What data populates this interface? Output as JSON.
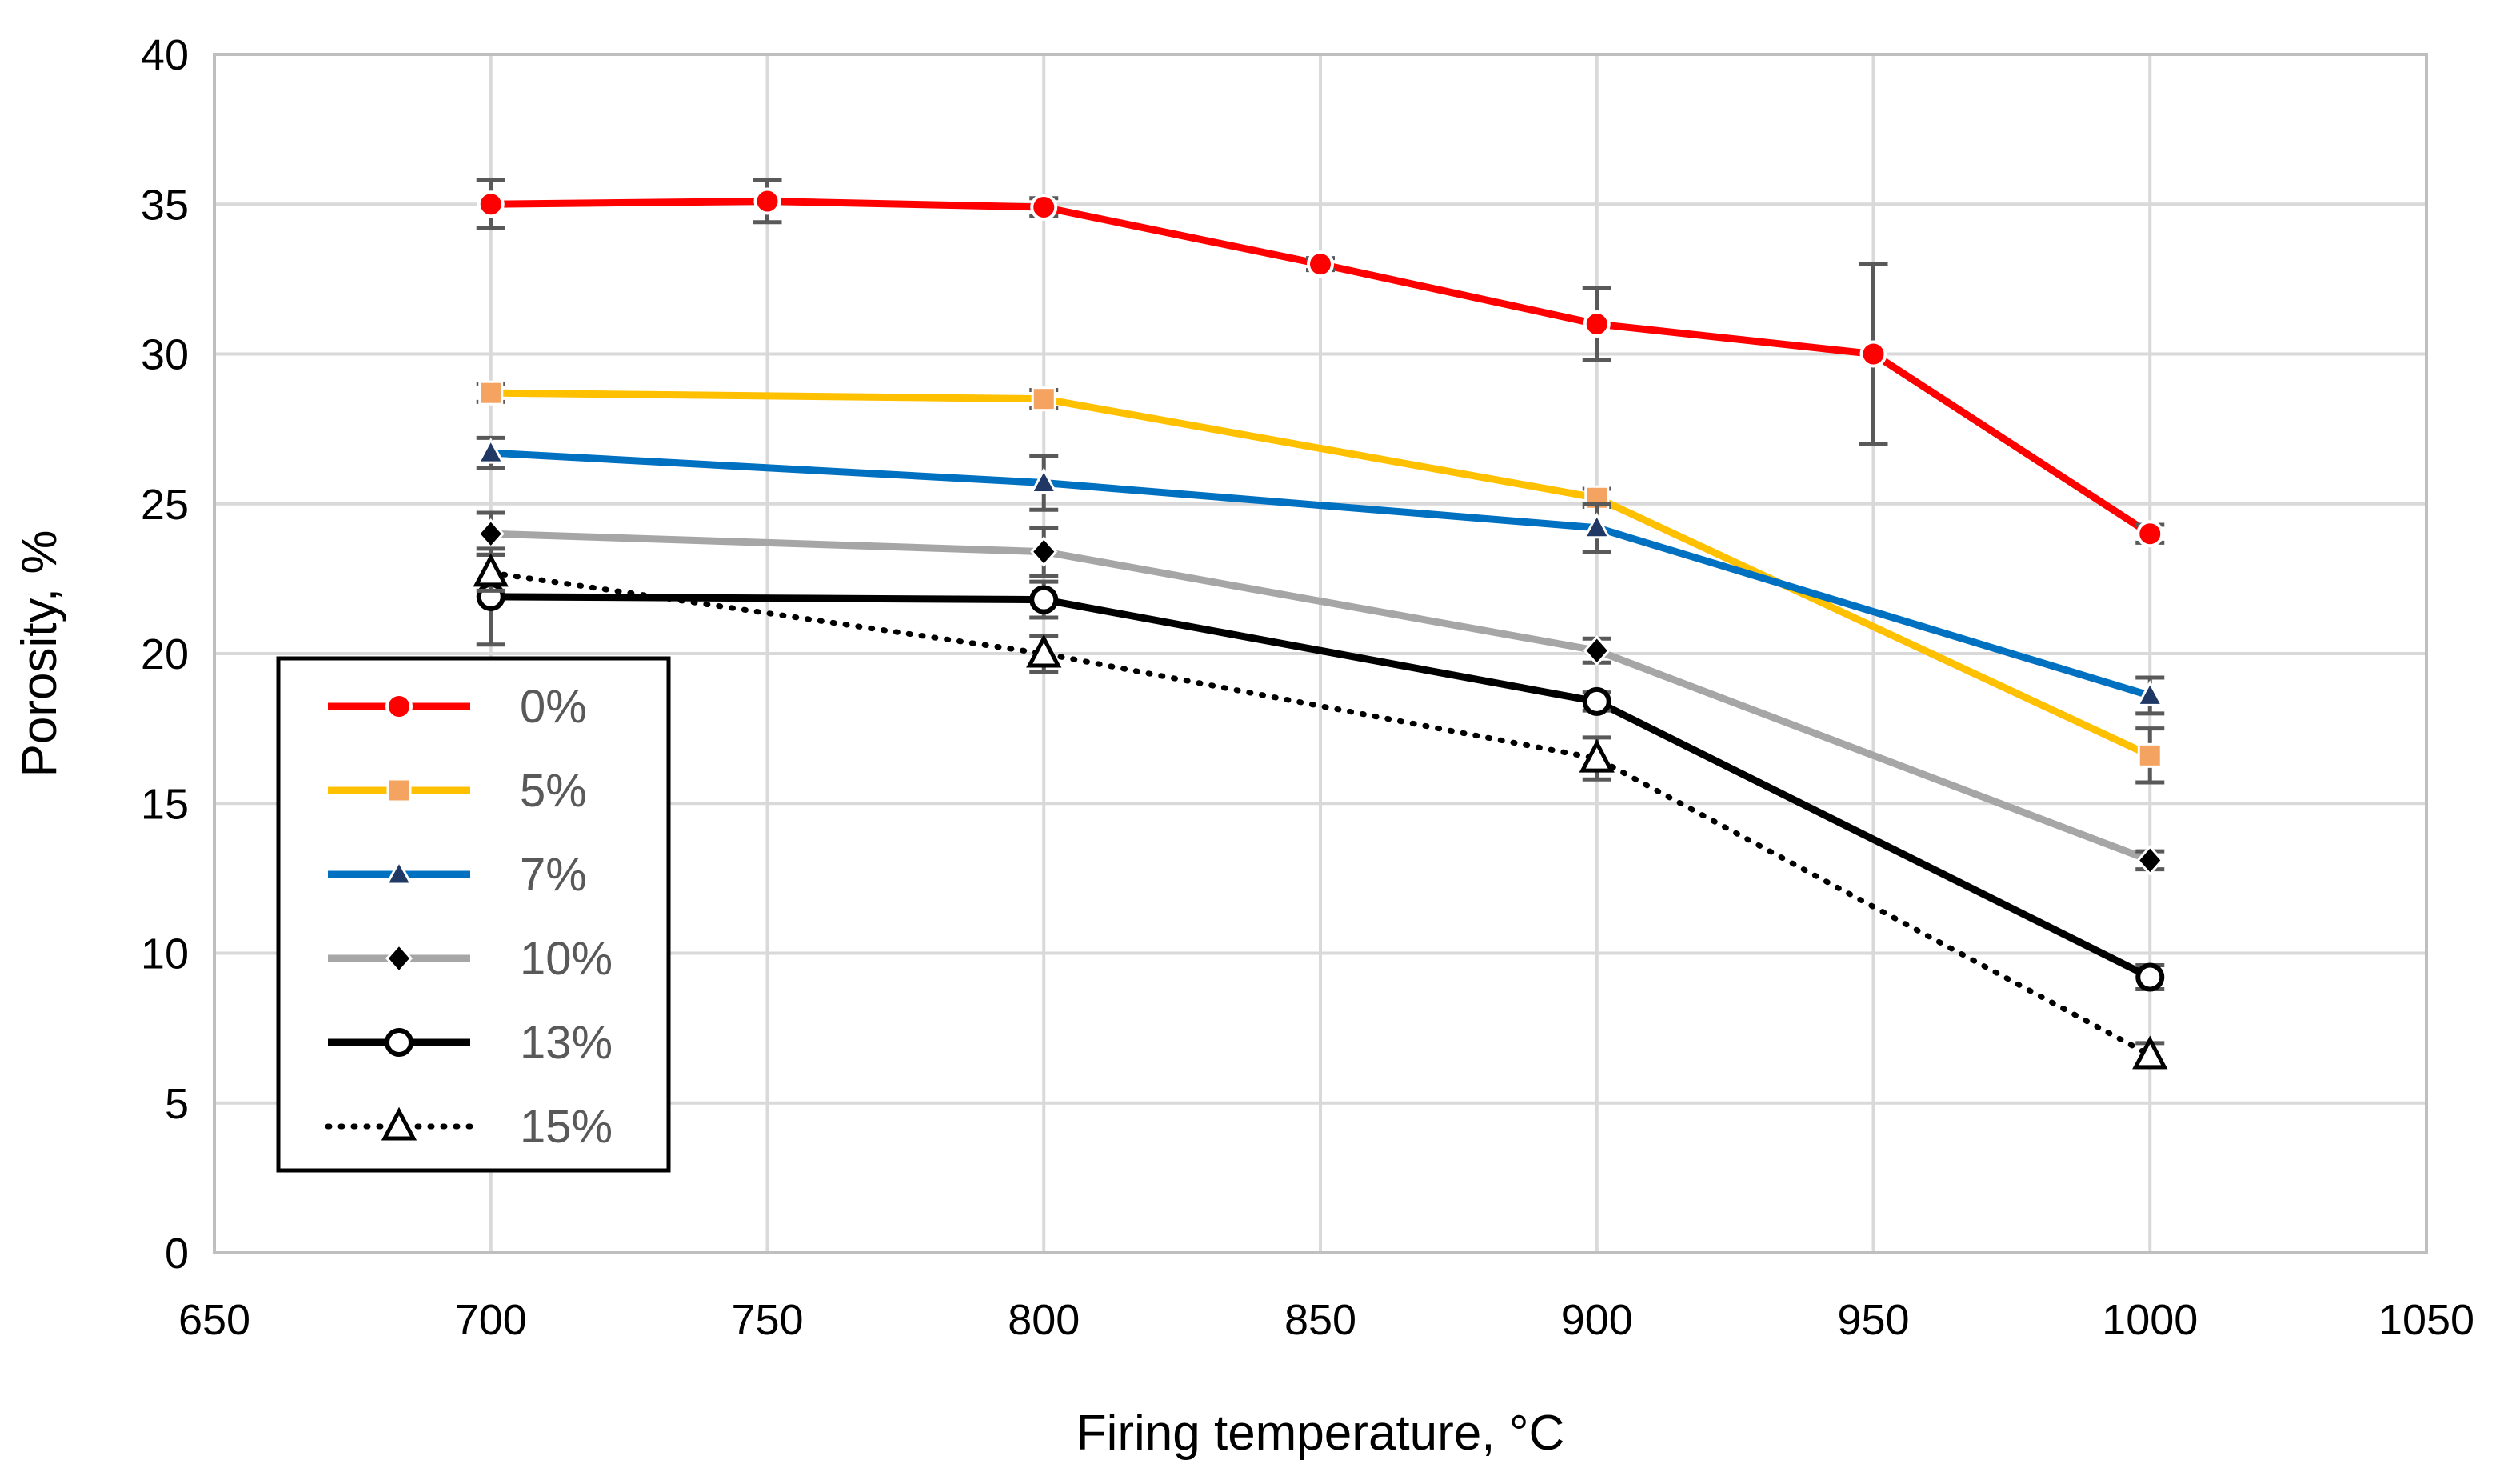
{
  "chart_data": {
    "type": "line",
    "title": "",
    "xlabel": "Firing temperature, °C",
    "ylabel": "Porosity, %",
    "xlim": [
      650,
      1050
    ],
    "ylim": [
      0,
      40
    ],
    "x_ticks": [
      650,
      700,
      750,
      800,
      850,
      900,
      950,
      1000,
      1050
    ],
    "y_ticks": [
      0,
      5,
      10,
      15,
      20,
      25,
      30,
      35,
      40
    ],
    "x_tick_labels": [
      "650",
      "700",
      "750",
      "800",
      "850",
      "900",
      "950",
      "1000",
      "1050"
    ],
    "y_tick_labels": [
      "0",
      "5",
      "10",
      "15",
      "20",
      "25",
      "30",
      "35",
      "40"
    ],
    "grid": true,
    "legend_position": "left",
    "series": [
      {
        "name": "0%",
        "color": "#FF0000",
        "marker": "circle-filled",
        "line_style": "solid",
        "points": [
          {
            "x": 700,
            "y": 35.0,
            "err": 0.8
          },
          {
            "x": 750,
            "y": 35.1,
            "err": 0.7
          },
          {
            "x": 800,
            "y": 34.9,
            "err": 0.3
          },
          {
            "x": 850,
            "y": 33.0,
            "err": 0.2
          },
          {
            "x": 900,
            "y": 31.0,
            "err": 1.2
          },
          {
            "x": 950,
            "y": 30.0,
            "err": 3.0
          },
          {
            "x": 1000,
            "y": 24.0,
            "err": 0.3
          }
        ]
      },
      {
        "name": "5%",
        "color": "#FFC000",
        "marker_color": "#F4A460",
        "marker": "square",
        "line_style": "solid",
        "points": [
          {
            "x": 700,
            "y": 28.7,
            "err": 0.3
          },
          {
            "x": 800,
            "y": 28.5,
            "err": 0.3
          },
          {
            "x": 900,
            "y": 25.2,
            "err": 0.3
          },
          {
            "x": 1000,
            "y": 16.6,
            "err": 0.9
          }
        ]
      },
      {
        "name": "7%",
        "color": "#0070C0",
        "marker_color": "#1F3864",
        "marker": "triangle-filled",
        "line_style": "solid",
        "points": [
          {
            "x": 700,
            "y": 26.7,
            "err": 0.5
          },
          {
            "x": 800,
            "y": 25.7,
            "err": 0.9
          },
          {
            "x": 900,
            "y": 24.2,
            "err": 0.8
          },
          {
            "x": 1000,
            "y": 18.6,
            "err": 0.6
          }
        ]
      },
      {
        "name": "10%",
        "color": "#A6A6A6",
        "marker_color": "#000000",
        "marker": "diamond",
        "line_style": "solid",
        "points": [
          {
            "x": 700,
            "y": 24.0,
            "err": 0.7
          },
          {
            "x": 800,
            "y": 23.4,
            "err": 0.8
          },
          {
            "x": 900,
            "y": 20.1,
            "err": 0.4
          },
          {
            "x": 1000,
            "y": 13.1,
            "err": 0.3
          }
        ]
      },
      {
        "name": "13%",
        "color": "#000000",
        "marker_color": "#000000",
        "marker": "circle-open",
        "line_style": "solid",
        "points": [
          {
            "x": 700,
            "y": 21.9,
            "err": 1.6
          },
          {
            "x": 800,
            "y": 21.8,
            "err": 0.6
          },
          {
            "x": 900,
            "y": 18.4,
            "err": 0.3
          },
          {
            "x": 1000,
            "y": 9.2,
            "err": 0.4
          }
        ]
      },
      {
        "name": "15%",
        "color": "#000000",
        "marker_color": "#000000",
        "marker": "triangle-open",
        "line_style": "dotted",
        "points": [
          {
            "x": 700,
            "y": 22.7,
            "err": 0.6
          },
          {
            "x": 800,
            "y": 20.0,
            "err": 0.6
          },
          {
            "x": 900,
            "y": 16.5,
            "err": 0.7
          },
          {
            "x": 1000,
            "y": 6.6,
            "err": 0.4
          }
        ]
      }
    ]
  }
}
